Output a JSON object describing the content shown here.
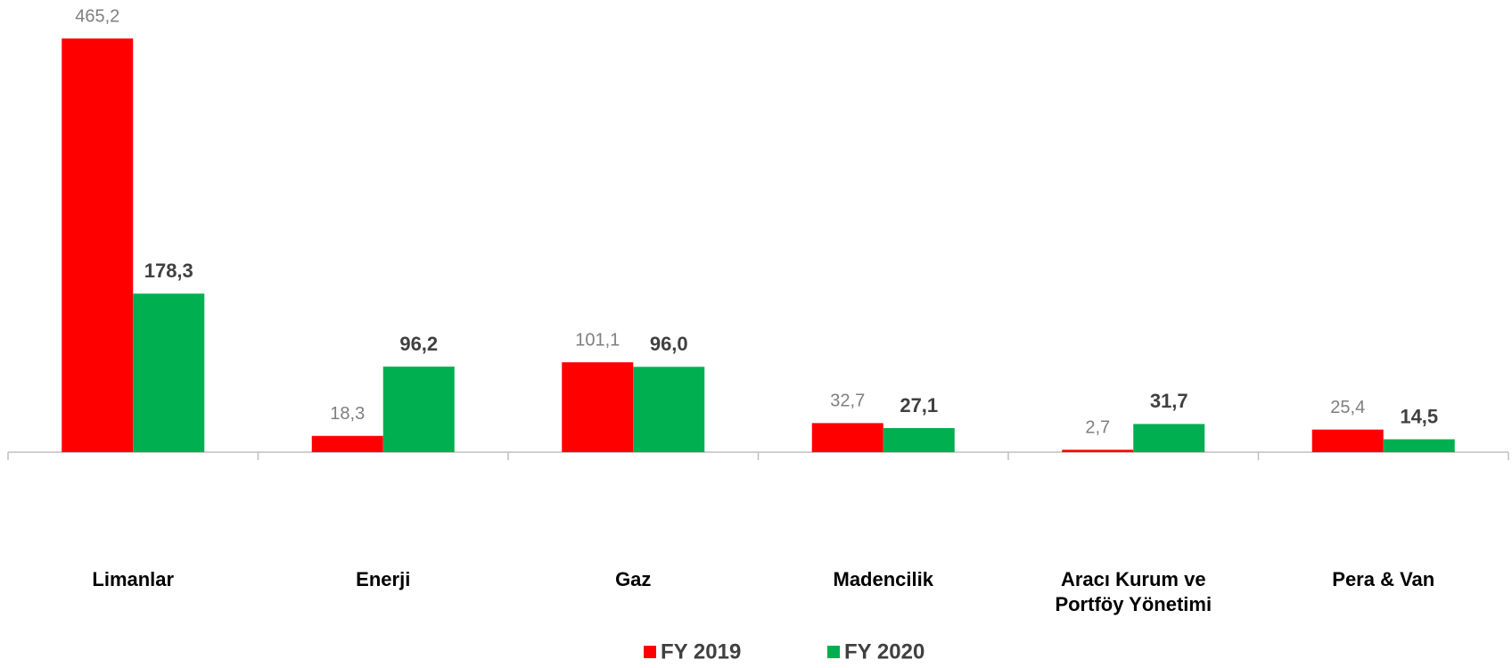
{
  "chart_data": {
    "type": "bar",
    "categories": [
      "Limanlar",
      "Enerji",
      "Gaz",
      "Madencilik",
      "Aracı Kurum ve Portföy Yönetimi",
      "Pera & Van"
    ],
    "series": [
      {
        "name": "FY 2019",
        "color": "#ff0000",
        "values": [
          465.2,
          18.3,
          101.1,
          32.7,
          2.7,
          25.4
        ],
        "value_labels": [
          "465,2",
          "18,3",
          "101,1",
          "32,7",
          "2,7",
          "25,4"
        ]
      },
      {
        "name": "FY 2020",
        "color": "#00b050",
        "values": [
          178.3,
          96.2,
          96.0,
          27.1,
          31.7,
          14.5
        ],
        "value_labels": [
          "178,3",
          "96,2",
          "96,0",
          "27,1",
          "31,7",
          "14,5"
        ]
      }
    ],
    "legend": "bottom"
  }
}
